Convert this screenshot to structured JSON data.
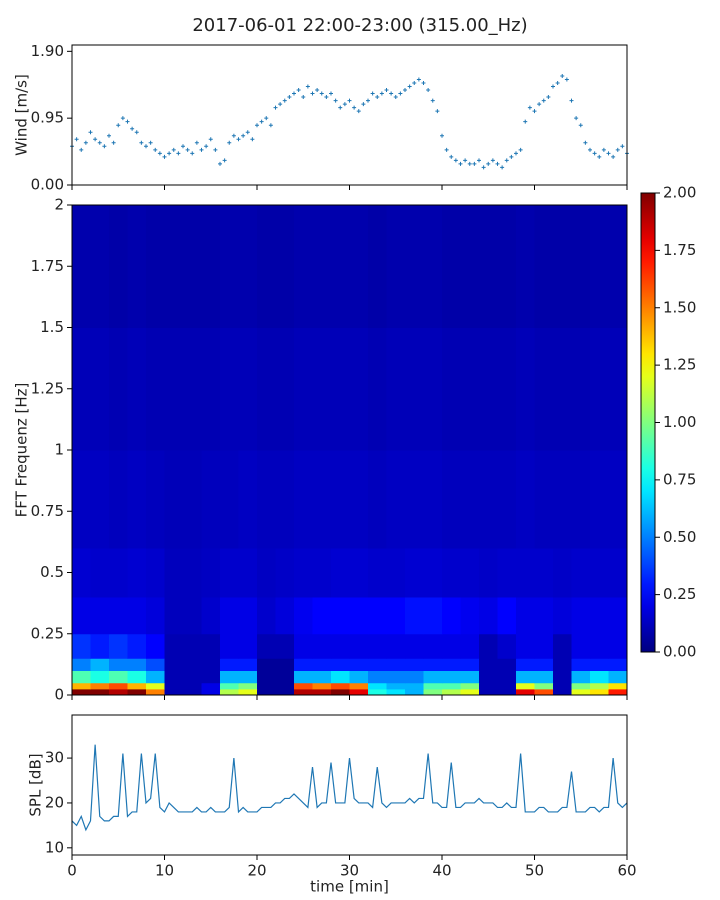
{
  "title": "2017-06-01 22:00-23:00 (315.00_Hz)",
  "chart_data": [
    {
      "type": "scatter",
      "ylabel": "Wind [m/s]",
      "color": "#1f77b4",
      "x": [
        0,
        0.5,
        1,
        1.5,
        2,
        2.5,
        3,
        3.5,
        4,
        4.5,
        5,
        5.5,
        6,
        6.5,
        7,
        7.5,
        8,
        8.5,
        9,
        9.5,
        10,
        10.5,
        11,
        11.5,
        12,
        12.5,
        13,
        13.5,
        14,
        14.5,
        15,
        15.5,
        16,
        16.5,
        17,
        17.5,
        18,
        18.5,
        19,
        19.5,
        20,
        20.5,
        21,
        21.5,
        22,
        22.5,
        23,
        23.5,
        24,
        24.5,
        25,
        25.5,
        26,
        26.5,
        27,
        27.5,
        28,
        28.5,
        29,
        29.5,
        30,
        30.5,
        31,
        31.5,
        32,
        32.5,
        33,
        33.5,
        34,
        34.5,
        35,
        35.5,
        36,
        36.5,
        37,
        37.5,
        38,
        38.5,
        39,
        39.5,
        40,
        40.5,
        41,
        41.5,
        42,
        42.5,
        43,
        43.5,
        44,
        44.5,
        45,
        45.5,
        46,
        46.5,
        47,
        47.5,
        48,
        48.5,
        49,
        49.5,
        50,
        50.5,
        51,
        51.5,
        52,
        52.5,
        53,
        53.5,
        54,
        54.5,
        55,
        55.5,
        56,
        56.5,
        57,
        57.5,
        58,
        58.5,
        59,
        59.5,
        60
      ],
      "values": [
        0.55,
        0.65,
        0.5,
        0.6,
        0.75,
        0.65,
        0.6,
        0.55,
        0.7,
        0.6,
        0.85,
        0.95,
        0.9,
        0.8,
        0.75,
        0.6,
        0.55,
        0.6,
        0.5,
        0.45,
        0.4,
        0.45,
        0.5,
        0.45,
        0.55,
        0.5,
        0.45,
        0.6,
        0.5,
        0.55,
        0.65,
        0.5,
        0.3,
        0.35,
        0.6,
        0.7,
        0.65,
        0.7,
        0.75,
        0.65,
        0.85,
        0.9,
        0.95,
        0.85,
        1.1,
        1.15,
        1.2,
        1.25,
        1.3,
        1.35,
        1.25,
        1.4,
        1.3,
        1.35,
        1.3,
        1.25,
        1.3,
        1.2,
        1.1,
        1.15,
        1.2,
        1.1,
        1.05,
        1.15,
        1.2,
        1.3,
        1.25,
        1.3,
        1.35,
        1.3,
        1.25,
        1.3,
        1.35,
        1.4,
        1.45,
        1.5,
        1.45,
        1.35,
        1.2,
        1.05,
        0.7,
        0.5,
        0.4,
        0.35,
        0.3,
        0.35,
        0.3,
        0.3,
        0.35,
        0.25,
        0.3,
        0.35,
        0.3,
        0.25,
        0.35,
        0.4,
        0.45,
        0.5,
        0.9,
        1.1,
        1.05,
        1.15,
        1.2,
        1.25,
        1.4,
        1.45,
        1.55,
        1.5,
        1.2,
        0.95,
        0.85,
        0.6,
        0.5,
        0.45,
        0.4,
        0.5,
        0.45,
        0.4,
        0.5,
        0.55,
        0.45
      ],
      "xlim": [
        0,
        60
      ],
      "xticks": [
        0,
        10,
        20,
        30,
        40,
        50,
        60
      ],
      "xtick_labels": false,
      "ylim": [
        0,
        1.99
      ],
      "yticks": [
        {
          "value": 0,
          "label": "0.00"
        },
        0.95,
        {
          "value": 1.9,
          "label": "1.90"
        }
      ]
    },
    {
      "type": "heatmap",
      "ylabel": "FFT Frequenz [Hz]",
      "x": [
        0,
        2,
        4,
        6,
        8,
        10,
        12,
        14,
        16,
        18,
        20,
        22,
        24,
        26,
        28,
        30,
        32,
        34,
        36,
        38,
        40,
        42,
        44,
        46,
        48,
        50,
        52,
        54,
        56,
        58,
        60
      ],
      "y": [
        0,
        0.025,
        0.05,
        0.1,
        0.15,
        0.25,
        0.4,
        0.6,
        1,
        1.5,
        2
      ],
      "z": [
        [
          2,
          2,
          1.9,
          2,
          1.5,
          0.1,
          0.1,
          0.2,
          1.1,
          1.2,
          0.05,
          0.05,
          1.9,
          1.9,
          2,
          1.8,
          0.8,
          0.7,
          0.6,
          1,
          1.1,
          1.2,
          0.1,
          0.1,
          1.8,
          1.6,
          0.1,
          1.2,
          1.3,
          1.7
        ],
        [
          1.4,
          1.5,
          1.6,
          1.4,
          1.2,
          0.1,
          0.1,
          0.2,
          0.9,
          1,
          0.05,
          0.05,
          1.6,
          1.5,
          1.6,
          1.5,
          0.7,
          0.6,
          0.6,
          0.9,
          0.9,
          1,
          0.1,
          0.1,
          1.2,
          1,
          0.1,
          1,
          1.1,
          1.3
        ],
        [
          0.9,
          0.8,
          0.9,
          0.8,
          0.6,
          0.1,
          0.1,
          0.1,
          0.6,
          0.6,
          0.05,
          0.05,
          0.6,
          0.6,
          0.7,
          0.6,
          0.5,
          0.5,
          0.5,
          0.6,
          0.6,
          0.6,
          0.1,
          0.1,
          0.6,
          0.6,
          0.1,
          0.6,
          0.7,
          0.6
        ],
        [
          0.5,
          0.6,
          0.5,
          0.5,
          0.4,
          0.1,
          0.1,
          0.1,
          0.3,
          0.3,
          0.05,
          0.05,
          0.3,
          0.3,
          0.3,
          0.3,
          0.3,
          0.3,
          0.3,
          0.3,
          0.3,
          0.3,
          0.1,
          0.1,
          0.3,
          0.3,
          0.1,
          0.3,
          0.3,
          0.3
        ],
        [
          0.35,
          0.3,
          0.35,
          0.3,
          0.25,
          0.1,
          0.1,
          0.1,
          0.2,
          0.2,
          0.1,
          0.1,
          0.2,
          0.2,
          0.2,
          0.2,
          0.2,
          0.2,
          0.2,
          0.2,
          0.2,
          0.2,
          0.1,
          0.15,
          0.2,
          0.2,
          0.1,
          0.2,
          0.2,
          0.2
        ],
        [
          0.2,
          0.2,
          0.2,
          0.2,
          0.18,
          0.12,
          0.12,
          0.15,
          0.2,
          0.2,
          0.15,
          0.18,
          0.22,
          0.25,
          0.25,
          0.25,
          0.25,
          0.25,
          0.28,
          0.28,
          0.25,
          0.22,
          0.2,
          0.25,
          0.2,
          0.2,
          0.18,
          0.2,
          0.2,
          0.2
        ],
        [
          0.16,
          0.15,
          0.15,
          0.16,
          0.15,
          0.12,
          0.12,
          0.13,
          0.15,
          0.15,
          0.13,
          0.14,
          0.15,
          0.15,
          0.16,
          0.16,
          0.15,
          0.15,
          0.16,
          0.16,
          0.15,
          0.15,
          0.14,
          0.15,
          0.15,
          0.15,
          0.14,
          0.15,
          0.15,
          0.15
        ],
        [
          0.13,
          0.13,
          0.12,
          0.13,
          0.12,
          0.11,
          0.11,
          0.12,
          0.12,
          0.13,
          0.12,
          0.12,
          0.13,
          0.13,
          0.13,
          0.13,
          0.12,
          0.13,
          0.13,
          0.13,
          0.12,
          0.12,
          0.12,
          0.12,
          0.13,
          0.12,
          0.12,
          0.12,
          0.13,
          0.13
        ],
        [
          0.11,
          0.11,
          0.1,
          0.11,
          0.1,
          0.1,
          0.1,
          0.1,
          0.11,
          0.11,
          0.1,
          0.1,
          0.11,
          0.11,
          0.11,
          0.11,
          0.1,
          0.11,
          0.11,
          0.11,
          0.1,
          0.1,
          0.1,
          0.1,
          0.11,
          0.1,
          0.1,
          0.1,
          0.11,
          0.11
        ],
        [
          0.09,
          0.09,
          0.08,
          0.09,
          0.08,
          0.08,
          0.08,
          0.08,
          0.09,
          0.09,
          0.08,
          0.08,
          0.09,
          0.09,
          0.09,
          0.09,
          0.08,
          0.09,
          0.09,
          0.09,
          0.08,
          0.08,
          0.08,
          0.08,
          0.09,
          0.08,
          0.08,
          0.08,
          0.09,
          0.09
        ]
      ],
      "zlim": [
        0,
        2
      ],
      "colorbar_ticks": [
        {
          "value": 0,
          "label": "0.00"
        },
        {
          "value": 0.25,
          "label": "0.25"
        },
        {
          "value": 0.5,
          "label": "0.50"
        },
        {
          "value": 0.75,
          "label": "0.75"
        },
        {
          "value": 1,
          "label": "1.00"
        },
        {
          "value": 1.25,
          "label": "1.25"
        },
        {
          "value": 1.5,
          "label": "1.50"
        },
        {
          "value": 1.75,
          "label": "1.75"
        },
        {
          "value": 2,
          "label": "2.00"
        }
      ],
      "xlim": [
        0,
        60
      ],
      "xticks": [
        0,
        10,
        20,
        30,
        40,
        50,
        60
      ],
      "xtick_labels": false,
      "ylim": [
        0,
        2
      ],
      "yticks": [
        0,
        0.25,
        0.5,
        0.75,
        1,
        1.25,
        1.5,
        1.75,
        2
      ]
    },
    {
      "type": "line",
      "xlabel": "time [min]",
      "ylabel": "SPL [dB]",
      "color": "#1f77b4",
      "x": [
        0,
        0.5,
        1,
        1.5,
        2,
        2.5,
        3,
        3.5,
        4,
        4.5,
        5,
        5.5,
        6,
        6.5,
        7,
        7.5,
        8,
        8.5,
        9,
        9.5,
        10,
        10.5,
        11,
        11.5,
        12,
        12.5,
        13,
        13.5,
        14,
        14.5,
        15,
        15.5,
        16,
        16.5,
        17,
        17.5,
        18,
        18.5,
        19,
        19.5,
        20,
        20.5,
        21,
        21.5,
        22,
        22.5,
        23,
        23.5,
        24,
        24.5,
        25,
        25.5,
        26,
        26.5,
        27,
        27.5,
        28,
        28.5,
        29,
        29.5,
        30,
        30.5,
        31,
        31.5,
        32,
        32.5,
        33,
        33.5,
        34,
        34.5,
        35,
        35.5,
        36,
        36.5,
        37,
        37.5,
        38,
        38.5,
        39,
        39.5,
        40,
        40.5,
        41,
        41.5,
        42,
        42.5,
        43,
        43.5,
        44,
        44.5,
        45,
        45.5,
        46,
        46.5,
        47,
        47.5,
        48,
        48.5,
        49,
        49.5,
        50,
        50.5,
        51,
        51.5,
        52,
        52.5,
        53,
        53.5,
        54,
        54.5,
        55,
        55.5,
        56,
        56.5,
        57,
        57.5,
        58,
        58.5,
        59,
        59.5,
        60
      ],
      "values": [
        16,
        15,
        17,
        14,
        16,
        33,
        17,
        16,
        16,
        17,
        17,
        31,
        17,
        18,
        18,
        31,
        20,
        21,
        31,
        19,
        18,
        20,
        19,
        18,
        18,
        18,
        18,
        19,
        18,
        18,
        19,
        18,
        18,
        18,
        19,
        30,
        18,
        19,
        18,
        18,
        18,
        19,
        19,
        19,
        20,
        20,
        21,
        21,
        22,
        21,
        20,
        19,
        28,
        19,
        20,
        20,
        29,
        20,
        20,
        20,
        30,
        21,
        20,
        20,
        20,
        19,
        28,
        20,
        19,
        20,
        20,
        20,
        20,
        21,
        20,
        21,
        21,
        31,
        20,
        20,
        19,
        19,
        29,
        19,
        19,
        20,
        20,
        20,
        21,
        20,
        20,
        20,
        19,
        19,
        20,
        19,
        19,
        31,
        18,
        18,
        18,
        19,
        19,
        18,
        18,
        18,
        19,
        19,
        27,
        18,
        18,
        18,
        19,
        19,
        18,
        19,
        19,
        30,
        20,
        19,
        20
      ],
      "xlim": [
        0,
        60
      ],
      "xticks": [
        0,
        10,
        20,
        30,
        40,
        50,
        60
      ],
      "xtick_labels": true,
      "ylim": [
        8.4,
        39.6
      ],
      "yticks": [
        10,
        20,
        30
      ]
    }
  ]
}
